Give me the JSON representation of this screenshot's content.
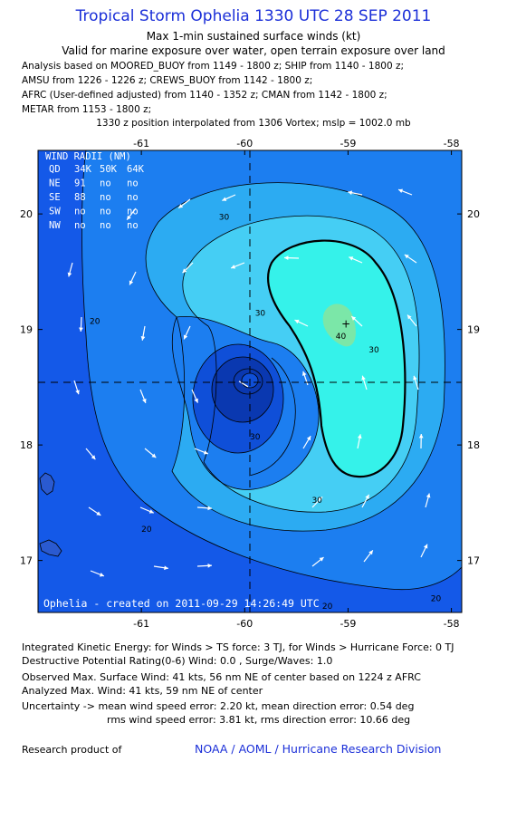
{
  "header": {
    "title": "Tropical Storm Ophelia 1330 UTC 28 SEP 2011",
    "subtitle1": "Max 1-min sustained surface winds (kt)",
    "subtitle2": "Valid for marine exposure over water, open terrain exposure over land",
    "analysis_lines": [
      "Analysis based on MOORED_BUOY from 1149 - 1800 z; SHIP from 1140 - 1800 z;",
      "AMSU from 1226 - 1226 z; CREWS_BUOY from 1142 - 1800 z;",
      "AFRC (User-defined adjusted) from 1140 - 1352 z; CMAN from 1142 - 1800 z;",
      "METAR from 1153 - 1800 z;"
    ],
    "position_note": "1330 z position interpolated from 1306 Vortex; mslp = 1002.0 mb"
  },
  "chart_data": {
    "type": "contour",
    "x_ticks": [
      -61,
      -60,
      -59,
      -58
    ],
    "y_ticks": [
      17,
      18,
      19,
      20
    ],
    "xlim": [
      -62.0,
      -57.9
    ],
    "ylim": [
      16.55,
      20.55
    ],
    "x_tick_labels": [
      "-61",
      "-60",
      "-59",
      "-58"
    ],
    "y_tick_labels": [
      "17",
      "18",
      "19",
      "20"
    ],
    "center": {
      "lon": -59.95,
      "lat": 18.52
    },
    "max_wind_marker": {
      "lon": -59.02,
      "lat": 19.05
    },
    "contour_labels": [
      {
        "text": "30",
        "lon": -60.2,
        "lat": 19.95
      },
      {
        "text": "20",
        "lon": -61.45,
        "lat": 19.05
      },
      {
        "text": "30",
        "lon": -59.85,
        "lat": 19.12
      },
      {
        "text": "40",
        "lon": -59.07,
        "lat": 18.92
      },
      {
        "text": "30",
        "lon": -58.75,
        "lat": 18.8
      },
      {
        "text": "30",
        "lon": -59.9,
        "lat": 18.05
      },
      {
        "text": "30",
        "lon": -59.3,
        "lat": 17.5
      },
      {
        "text": "20",
        "lon": -60.95,
        "lat": 17.25
      },
      {
        "text": "20",
        "lon": -58.15,
        "lat": 16.65
      },
      {
        "text": "20",
        "lon": -59.2,
        "lat": 16.58
      }
    ],
    "wind_radii": {
      "title": "WIND RADII (NM)",
      "header": [
        "QD",
        "34K",
        "50K",
        "64K"
      ],
      "rows": [
        [
          "NE",
          "91",
          "no",
          "no"
        ],
        [
          "SE",
          "88",
          "no",
          "no"
        ],
        [
          "SW",
          "no",
          "no",
          "no"
        ],
        [
          "NW",
          "no",
          "no",
          "no"
        ]
      ]
    },
    "credit": "Ophelia - created on 2011-09-29 14:26:49 UTC",
    "colors": {
      "deep": "#1459e8",
      "c20": "#1c7ef0",
      "c30": "#2cabf2",
      "c35": "#45cef4",
      "c40": "#35f2ea",
      "c45": "#7be7a8",
      "core1": "#0f4fd8",
      "core2": "#0a38b0"
    }
  },
  "footer": {
    "line1": "Integrated Kinetic Energy:  for Winds > TS force: 3 TJ,  for Winds > Hurricane Force: 0 TJ",
    "line2": "Destructive Potential Rating(0-6)   Wind: 0.0 , Surge/Waves: 1.0",
    "line3": "Observed Max. Surface Wind: 41 kts, 56 nm NE of center based on 1224 z AFRC",
    "line4": "Analyzed Max. Wind: 41 kts, 59 nm NE of center",
    "line5": "Uncertainty -> mean wind speed error: 2.20 kt,   mean direction error: 0.54 deg",
    "line6": "rms wind speed error: 3.81 kt,   rms direction error: 10.66 deg",
    "research": "Research product of",
    "org": "NOAA / AOML / Hurricane Research Division"
  }
}
